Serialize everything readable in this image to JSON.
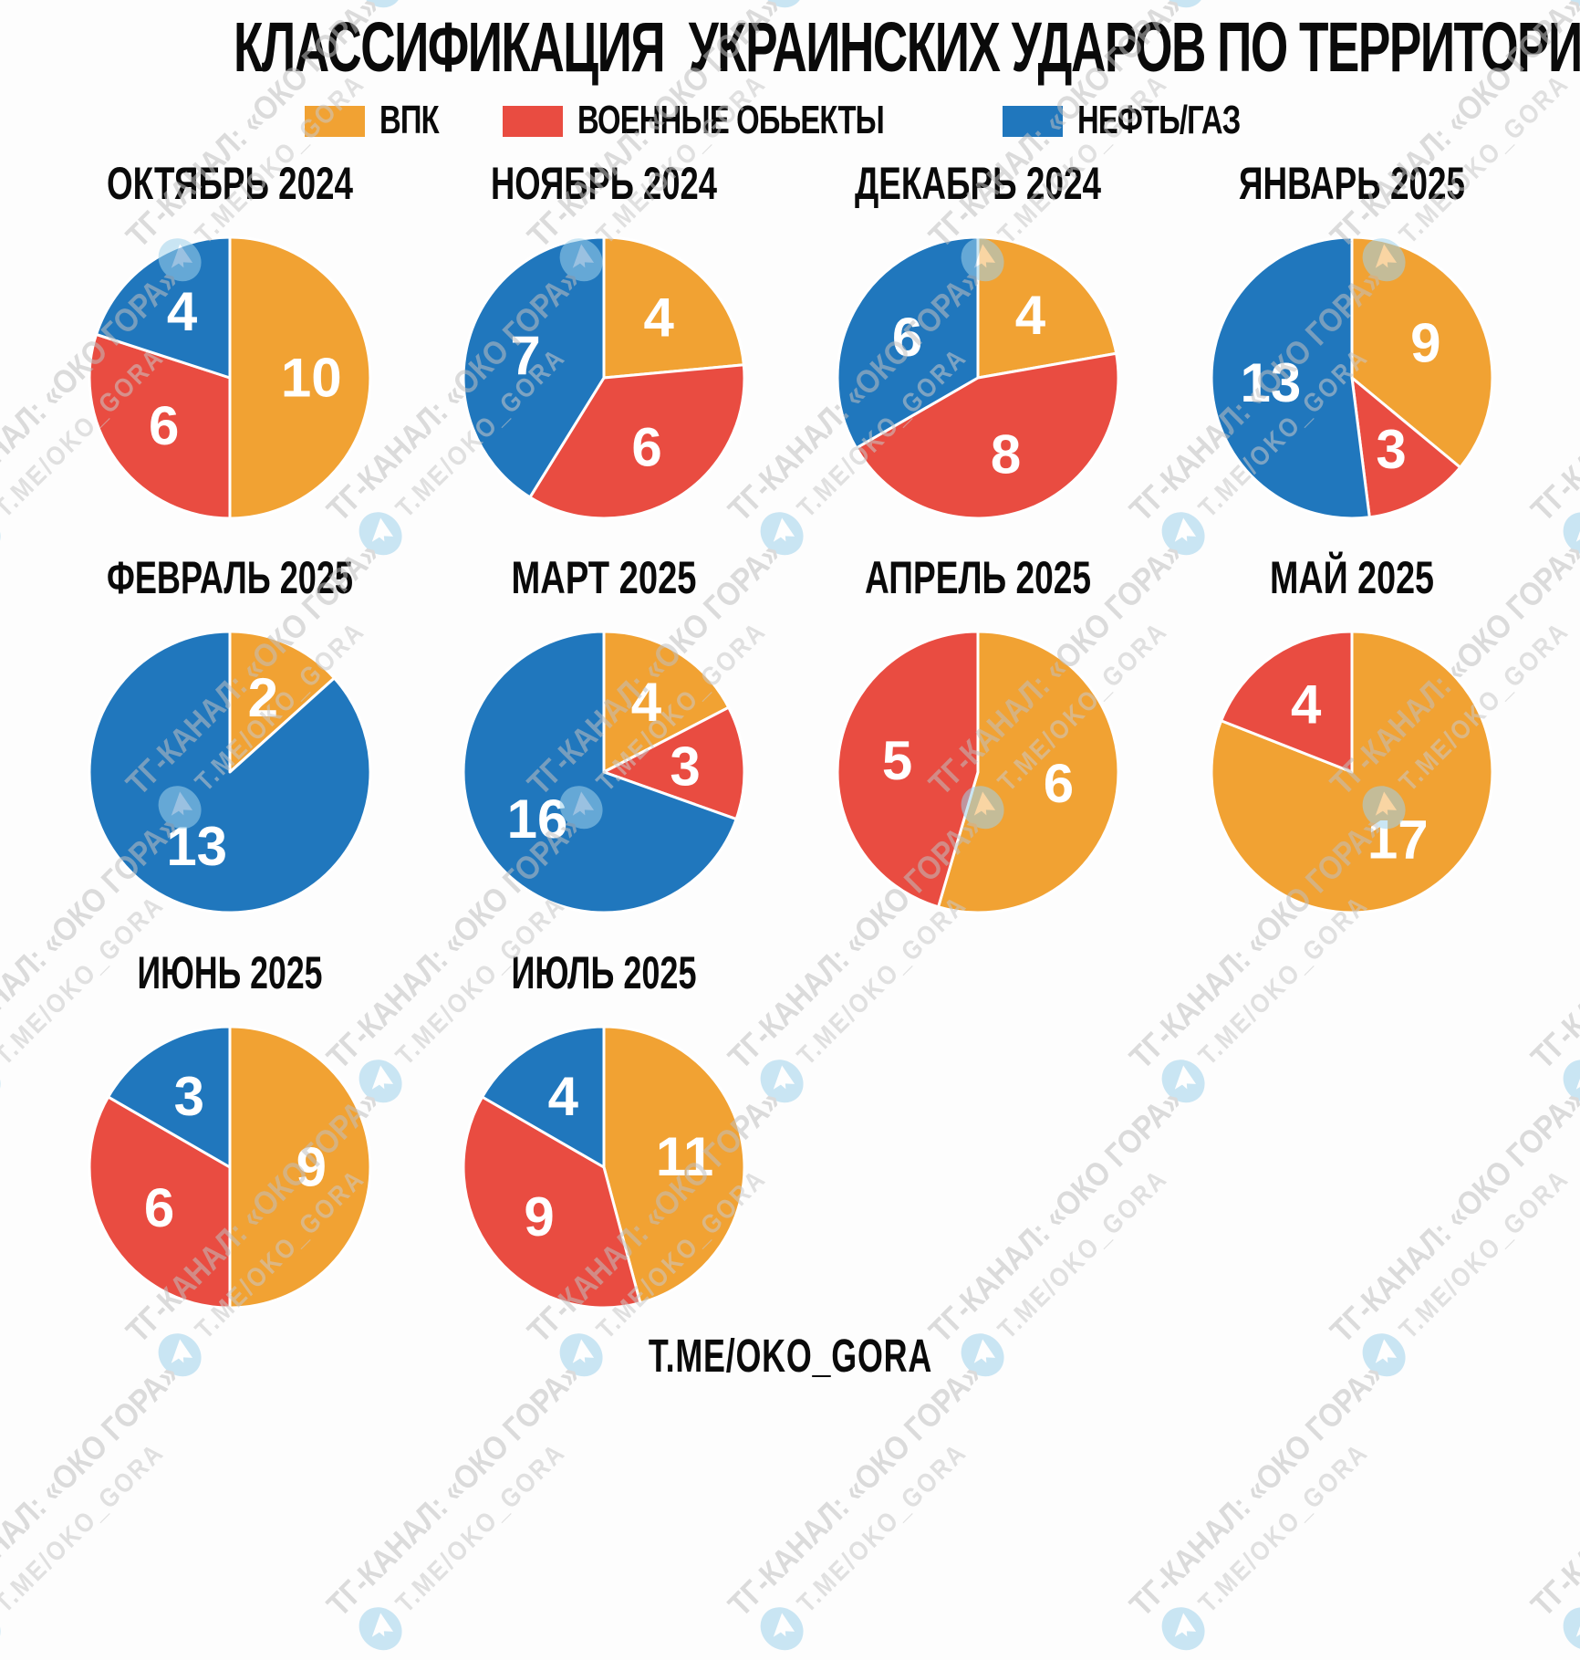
{
  "title": "КЛАССИФИКАЦИЯ  УКРАИНСКИХ УДАРОВ ПО ТЕРРИТОРИИ РФ:",
  "legend": [
    {
      "key": "vpk",
      "label": "ВПК",
      "color": "#F1A233"
    },
    {
      "key": "military-objects",
      "label": "ВОЕННЫЕ ОБЬЕКТЫ",
      "color": "#E94C41"
    },
    {
      "key": "oil-gas",
      "label": "НЕФТЬ/ГАЗ",
      "color": "#2077BD"
    }
  ],
  "footer": "T.ME/OKO_GORA",
  "watermark": {
    "line1": "ТГ-КАНАЛ: «ОКО ГОРА»",
    "line2": "T.ME/OKO_GORA",
    "icon": "telegram-icon",
    "text_color": "#c4c4c4",
    "icon_color": "#9fd2ec"
  },
  "chart_data": [
    {
      "type": "pie",
      "id": "oct-2024",
      "title": "ОКТЯБРЬ 2024",
      "labels": [
        "ВПК",
        "ВОЕННЫЕ ОБЬЕКТЫ",
        "НЕФТЬ/ГАЗ"
      ],
      "values": [
        10,
        6,
        4
      ],
      "colors": [
        "#F1A233",
        "#E94C41",
        "#2077BD"
      ],
      "start_angle": "top",
      "direction": "clockwise"
    },
    {
      "type": "pie",
      "id": "nov-2024",
      "title": "НОЯБРЬ 2024",
      "labels": [
        "ВПК",
        "ВОЕННЫЕ ОБЬЕКТЫ",
        "НЕФТЬ/ГАЗ"
      ],
      "values": [
        4,
        6,
        7
      ],
      "colors": [
        "#F1A233",
        "#E94C41",
        "#2077BD"
      ],
      "start_angle": "top",
      "direction": "clockwise"
    },
    {
      "type": "pie",
      "id": "dec-2024",
      "title": "ДЕКАБРЬ 2024",
      "labels": [
        "ВПК",
        "ВОЕННЫЕ ОБЬЕКТЫ",
        "НЕФТЬ/ГАЗ"
      ],
      "values": [
        4,
        8,
        6
      ],
      "colors": [
        "#F1A233",
        "#E94C41",
        "#2077BD"
      ],
      "start_angle": "top",
      "direction": "clockwise"
    },
    {
      "type": "pie",
      "id": "jan-2025",
      "title": "ЯНВАРЬ 2025",
      "labels": [
        "ВПК",
        "ВОЕННЫЕ ОБЬЕКТЫ",
        "НЕФТЬ/ГАЗ"
      ],
      "values": [
        9,
        3,
        13
      ],
      "colors": [
        "#F1A233",
        "#E94C41",
        "#2077BD"
      ],
      "start_angle": "top",
      "direction": "clockwise"
    },
    {
      "type": "pie",
      "id": "feb-2025",
      "title": "ФЕВРАЛЬ 2025",
      "labels": [
        "ВПК",
        "ВОЕННЫЕ ОБЬЕКТЫ",
        "НЕФТЬ/ГАЗ"
      ],
      "values": [
        2,
        0,
        13
      ],
      "colors": [
        "#F1A233",
        "#E94C41",
        "#2077BD"
      ],
      "start_angle": "top",
      "direction": "clockwise"
    },
    {
      "type": "pie",
      "id": "mar-2025",
      "title": "МАРТ 2025",
      "labels": [
        "ВПК",
        "ВОЕННЫЕ ОБЬЕКТЫ",
        "НЕФТЬ/ГАЗ"
      ],
      "values": [
        4,
        3,
        16
      ],
      "colors": [
        "#F1A233",
        "#E94C41",
        "#2077BD"
      ],
      "start_angle": "top",
      "direction": "clockwise"
    },
    {
      "type": "pie",
      "id": "apr-2025",
      "title": "АПРЕЛЬ 2025",
      "labels": [
        "ВПК",
        "ВОЕННЫЕ ОБЬЕКТЫ",
        "НЕФТЬ/ГАЗ"
      ],
      "values": [
        6,
        5,
        0
      ],
      "colors": [
        "#F1A233",
        "#E94C41",
        "#2077BD"
      ],
      "start_angle": "top",
      "direction": "clockwise"
    },
    {
      "type": "pie",
      "id": "may-2025",
      "title": "МАЙ 2025",
      "labels": [
        "ВПК",
        "ВОЕННЫЕ ОБЬЕКТЫ",
        "НЕФТЬ/ГАЗ"
      ],
      "values": [
        17,
        4,
        0
      ],
      "colors": [
        "#F1A233",
        "#E94C41",
        "#2077BD"
      ],
      "start_angle": "top",
      "direction": "clockwise"
    },
    {
      "type": "pie",
      "id": "jun-2025",
      "title": "ИЮНЬ 2025",
      "labels": [
        "ВПК",
        "ВОЕННЫЕ ОБЬЕКТЫ",
        "НЕФТЬ/ГАЗ"
      ],
      "values": [
        9,
        6,
        3
      ],
      "colors": [
        "#F1A233",
        "#E94C41",
        "#2077BD"
      ],
      "start_angle": "top",
      "direction": "clockwise"
    },
    {
      "type": "pie",
      "id": "jul-2025",
      "title": "ИЮЛЬ 2025",
      "labels": [
        "ВПК",
        "ВОЕННЫЕ ОБЬЕКТЫ",
        "НЕФТЬ/ГАЗ"
      ],
      "values": [
        11,
        9,
        4
      ],
      "colors": [
        "#F1A233",
        "#E94C41",
        "#2077BD"
      ],
      "start_angle": "top",
      "direction": "clockwise"
    }
  ]
}
